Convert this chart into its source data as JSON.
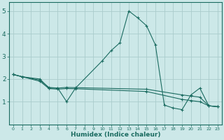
{
  "xlabel": "Humidex (Indice chaleur)",
  "background_color": "#cce8e8",
  "grid_color": "#aacccc",
  "line_color": "#1a6b60",
  "xlim": [
    -0.5,
    23.5
  ],
  "ylim": [
    0,
    5.4
  ],
  "x_ticks": [
    0,
    1,
    2,
    3,
    4,
    5,
    6,
    7,
    8,
    9,
    10,
    11,
    12,
    13,
    14,
    15,
    16,
    17,
    18,
    19,
    20,
    21,
    22,
    23
  ],
  "y_ticks": [
    1,
    2,
    3,
    4,
    5
  ],
  "line1_x": [
    0,
    1,
    3,
    4,
    5,
    6,
    7,
    10,
    11,
    12,
    13,
    14,
    15,
    16,
    17,
    18,
    19,
    20,
    21,
    22,
    23
  ],
  "line1_y": [
    2.2,
    2.1,
    2.0,
    1.6,
    1.6,
    1.0,
    1.6,
    2.8,
    3.25,
    3.6,
    5.0,
    4.7,
    4.35,
    3.5,
    0.85,
    0.72,
    0.65,
    1.3,
    1.6,
    0.82,
    0.78
  ],
  "line2_x": [
    0,
    1,
    3,
    4,
    5,
    6,
    7,
    15,
    19,
    20,
    21,
    22,
    23
  ],
  "line2_y": [
    2.2,
    2.1,
    1.95,
    1.63,
    1.6,
    1.63,
    1.62,
    1.55,
    1.3,
    1.25,
    1.2,
    0.82,
    0.78
  ],
  "line3_x": [
    0,
    1,
    3,
    4,
    5,
    6,
    7,
    15,
    19,
    20,
    21,
    22,
    23
  ],
  "line3_y": [
    2.2,
    2.1,
    1.9,
    1.58,
    1.55,
    1.58,
    1.57,
    1.45,
    1.1,
    1.05,
    1.0,
    0.82,
    0.78
  ]
}
